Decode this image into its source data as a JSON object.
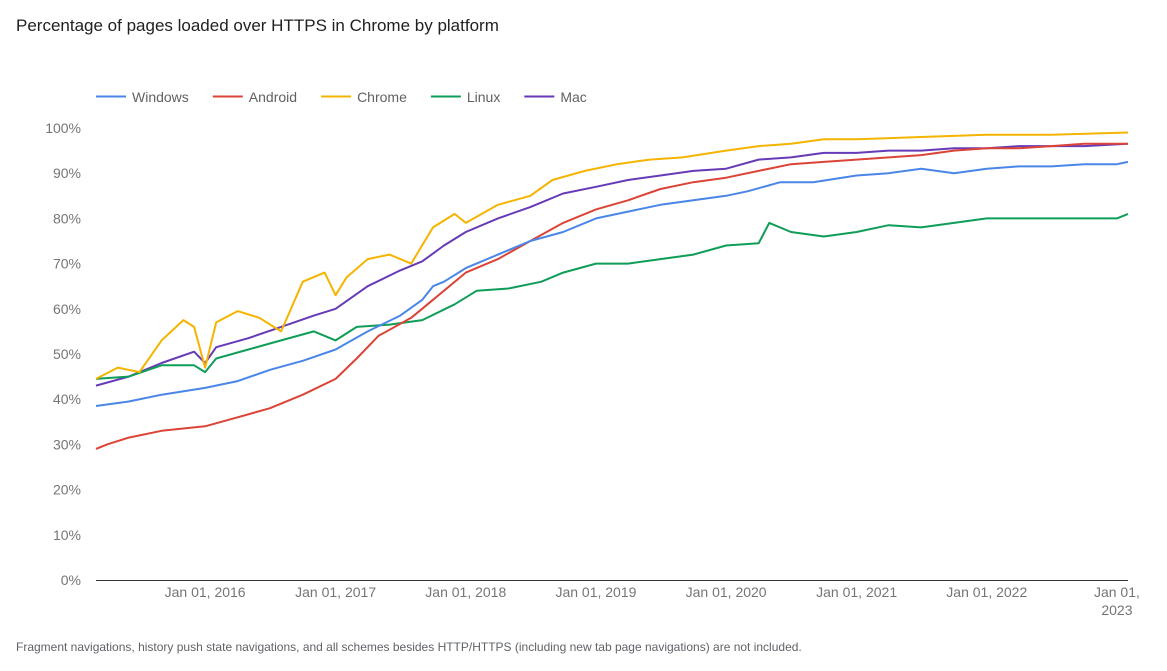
{
  "header": {
    "title": "Percentage of pages loaded over HTTPS in Chrome by platform"
  },
  "footnote": "Fragment navigations, history push state navigations, and all schemes besides HTTP/HTTPS (including new tab page navigations) are not included.",
  "chart_data": {
    "type": "line",
    "title": "Percentage of pages loaded over HTTPS in Chrome by platform",
    "xlabel": "",
    "ylabel": "",
    "x_range": [
      "2015-03-01",
      "2023-02-01"
    ],
    "ylim": [
      0,
      100
    ],
    "yticks": [
      0,
      10,
      20,
      30,
      40,
      50,
      60,
      70,
      80,
      90,
      100
    ],
    "ytick_labels": [
      "0%",
      "10%",
      "20%",
      "30%",
      "40%",
      "50%",
      "60%",
      "70%",
      "80%",
      "90%",
      "100%"
    ],
    "xticks": [
      "2016-01-01",
      "2017-01-01",
      "2018-01-01",
      "2019-01-01",
      "2020-01-01",
      "2021-01-01",
      "2022-01-01",
      "2023-01-01"
    ],
    "xtick_labels": [
      "Jan 01, 2016",
      "Jan 01, 2017",
      "Jan 01, 2018",
      "Jan 01, 2019",
      "Jan 01, 2020",
      "Jan 01, 2021",
      "Jan 01, 2022",
      "Jan 01, 2023"
    ],
    "grid": false,
    "legend_position": "top-left",
    "series": [
      {
        "name": "Windows",
        "color": "#4a86e8",
        "points": [
          [
            "2015-03-01",
            38.5
          ],
          [
            "2015-06-01",
            39.5
          ],
          [
            "2015-09-01",
            41
          ],
          [
            "2016-01-01",
            42.5
          ],
          [
            "2016-04-01",
            44
          ],
          [
            "2016-07-01",
            46.5
          ],
          [
            "2016-10-01",
            48.5
          ],
          [
            "2017-01-01",
            51
          ],
          [
            "2017-04-01",
            55
          ],
          [
            "2017-07-01",
            58.5
          ],
          [
            "2017-09-01",
            62
          ],
          [
            "2017-10-01",
            65
          ],
          [
            "2017-11-01",
            66
          ],
          [
            "2018-01-01",
            69
          ],
          [
            "2018-04-01",
            72
          ],
          [
            "2018-07-01",
            75
          ],
          [
            "2018-10-01",
            77
          ],
          [
            "2019-01-01",
            80
          ],
          [
            "2019-04-01",
            81.5
          ],
          [
            "2019-07-01",
            83
          ],
          [
            "2019-10-01",
            84
          ],
          [
            "2020-01-01",
            85
          ],
          [
            "2020-03-01",
            86
          ],
          [
            "2020-06-01",
            88
          ],
          [
            "2020-09-01",
            88
          ],
          [
            "2021-01-01",
            89.5
          ],
          [
            "2021-04-01",
            90
          ],
          [
            "2021-07-01",
            91
          ],
          [
            "2021-10-01",
            90
          ],
          [
            "2022-01-01",
            91
          ],
          [
            "2022-04-01",
            91.5
          ],
          [
            "2022-07-01",
            91.5
          ],
          [
            "2022-10-01",
            92
          ],
          [
            "2023-01-01",
            92
          ],
          [
            "2023-02-01",
            92.5
          ]
        ]
      },
      {
        "name": "Android",
        "color": "#db4437",
        "points": [
          [
            "2015-03-01",
            29
          ],
          [
            "2015-04-01",
            30
          ],
          [
            "2015-06-01",
            31.5
          ],
          [
            "2015-09-01",
            33
          ],
          [
            "2016-01-01",
            34
          ],
          [
            "2016-04-01",
            36
          ],
          [
            "2016-07-01",
            38
          ],
          [
            "2016-10-01",
            41
          ],
          [
            "2017-01-01",
            44.5
          ],
          [
            "2017-03-01",
            49
          ],
          [
            "2017-05-01",
            54
          ],
          [
            "2017-08-01",
            58
          ],
          [
            "2017-10-01",
            62
          ],
          [
            "2018-01-01",
            68
          ],
          [
            "2018-04-01",
            71
          ],
          [
            "2018-07-01",
            75
          ],
          [
            "2018-10-01",
            79
          ],
          [
            "2019-01-01",
            82
          ],
          [
            "2019-04-01",
            84
          ],
          [
            "2019-07-01",
            86.5
          ],
          [
            "2019-10-01",
            88
          ],
          [
            "2020-01-01",
            89
          ],
          [
            "2020-04-01",
            90.5
          ],
          [
            "2020-07-01",
            92
          ],
          [
            "2020-10-01",
            92.5
          ],
          [
            "2021-01-01",
            93
          ],
          [
            "2021-04-01",
            93.5
          ],
          [
            "2021-07-01",
            94
          ],
          [
            "2021-10-01",
            95
          ],
          [
            "2022-01-01",
            95.5
          ],
          [
            "2022-04-01",
            95.5
          ],
          [
            "2022-07-01",
            96
          ],
          [
            "2022-10-01",
            96.5
          ],
          [
            "2023-02-01",
            96.5
          ]
        ]
      },
      {
        "name": "Chrome",
        "color": "#f4b400",
        "points": [
          [
            "2015-03-01",
            44.5
          ],
          [
            "2015-05-01",
            47
          ],
          [
            "2015-07-01",
            46
          ],
          [
            "2015-09-01",
            53
          ],
          [
            "2015-11-01",
            57.5
          ],
          [
            "2015-12-01",
            56
          ],
          [
            "2016-01-01",
            47
          ],
          [
            "2016-02-01",
            57
          ],
          [
            "2016-04-01",
            59.5
          ],
          [
            "2016-06-01",
            58
          ],
          [
            "2016-08-01",
            55
          ],
          [
            "2016-10-01",
            66
          ],
          [
            "2016-12-01",
            68
          ],
          [
            "2017-01-01",
            63
          ],
          [
            "2017-02-01",
            67
          ],
          [
            "2017-04-01",
            71
          ],
          [
            "2017-06-01",
            72
          ],
          [
            "2017-08-01",
            70
          ],
          [
            "2017-10-01",
            78
          ],
          [
            "2017-12-01",
            81
          ],
          [
            "2018-01-01",
            79
          ],
          [
            "2018-04-01",
            83
          ],
          [
            "2018-07-01",
            85
          ],
          [
            "2018-09-01",
            88.5
          ],
          [
            "2018-12-01",
            90.5
          ],
          [
            "2019-03-01",
            92
          ],
          [
            "2019-06-01",
            93
          ],
          [
            "2019-09-01",
            93.5
          ],
          [
            "2020-01-01",
            95
          ],
          [
            "2020-04-01",
            96
          ],
          [
            "2020-07-01",
            96.5
          ],
          [
            "2020-10-01",
            97.5
          ],
          [
            "2021-01-01",
            97.5
          ],
          [
            "2021-07-01",
            98
          ],
          [
            "2022-01-01",
            98.5
          ],
          [
            "2022-07-01",
            98.5
          ],
          [
            "2023-02-01",
            99
          ]
        ]
      },
      {
        "name": "Linux",
        "color": "#0f9d58",
        "points": [
          [
            "2015-03-01",
            44.5
          ],
          [
            "2015-06-01",
            45
          ],
          [
            "2015-09-01",
            47.5
          ],
          [
            "2015-12-01",
            47.5
          ],
          [
            "2016-01-01",
            46
          ],
          [
            "2016-02-01",
            49
          ],
          [
            "2016-05-01",
            51
          ],
          [
            "2016-08-01",
            53
          ],
          [
            "2016-11-01",
            55
          ],
          [
            "2017-01-01",
            53
          ],
          [
            "2017-03-01",
            56
          ],
          [
            "2017-06-01",
            56.5
          ],
          [
            "2017-09-01",
            57.5
          ],
          [
            "2017-12-01",
            61
          ],
          [
            "2018-02-01",
            64
          ],
          [
            "2018-05-01",
            64.5
          ],
          [
            "2018-08-01",
            66
          ],
          [
            "2018-10-01",
            68
          ],
          [
            "2019-01-01",
            70
          ],
          [
            "2019-04-01",
            70
          ],
          [
            "2019-07-01",
            71
          ],
          [
            "2019-10-01",
            72
          ],
          [
            "2020-01-01",
            74
          ],
          [
            "2020-04-01",
            74.5
          ],
          [
            "2020-05-01",
            79
          ],
          [
            "2020-07-01",
            77
          ],
          [
            "2020-10-01",
            76
          ],
          [
            "2021-01-01",
            77
          ],
          [
            "2021-04-01",
            78.5
          ],
          [
            "2021-07-01",
            78
          ],
          [
            "2021-10-01",
            79
          ],
          [
            "2022-01-01",
            80
          ],
          [
            "2022-04-01",
            80
          ],
          [
            "2022-07-01",
            80
          ],
          [
            "2022-10-01",
            80
          ],
          [
            "2023-01-01",
            80
          ],
          [
            "2023-02-01",
            81
          ]
        ]
      },
      {
        "name": "Mac",
        "color": "#673ab7",
        "points": [
          [
            "2015-03-01",
            43
          ],
          [
            "2015-06-01",
            45
          ],
          [
            "2015-09-01",
            48
          ],
          [
            "2015-12-01",
            50.5
          ],
          [
            "2016-01-01",
            48
          ],
          [
            "2016-02-01",
            51.5
          ],
          [
            "2016-05-01",
            53.5
          ],
          [
            "2016-08-01",
            56
          ],
          [
            "2016-11-01",
            58.5
          ],
          [
            "2017-01-01",
            60
          ],
          [
            "2017-04-01",
            65
          ],
          [
            "2017-07-01",
            68.5
          ],
          [
            "2017-09-01",
            70.5
          ],
          [
            "2017-11-01",
            74
          ],
          [
            "2018-01-01",
            77
          ],
          [
            "2018-04-01",
            80
          ],
          [
            "2018-07-01",
            82.5
          ],
          [
            "2018-10-01",
            85.5
          ],
          [
            "2019-01-01",
            87
          ],
          [
            "2019-04-01",
            88.5
          ],
          [
            "2019-07-01",
            89.5
          ],
          [
            "2019-10-01",
            90.5
          ],
          [
            "2020-01-01",
            91
          ],
          [
            "2020-04-01",
            93
          ],
          [
            "2020-07-01",
            93.5
          ],
          [
            "2020-10-01",
            94.5
          ],
          [
            "2021-01-01",
            94.5
          ],
          [
            "2021-04-01",
            95
          ],
          [
            "2021-07-01",
            95
          ],
          [
            "2021-10-01",
            95.5
          ],
          [
            "2022-01-01",
            95.5
          ],
          [
            "2022-04-01",
            96
          ],
          [
            "2022-07-01",
            96
          ],
          [
            "2022-10-01",
            96
          ],
          [
            "2023-02-01",
            96.5
          ]
        ]
      }
    ]
  }
}
